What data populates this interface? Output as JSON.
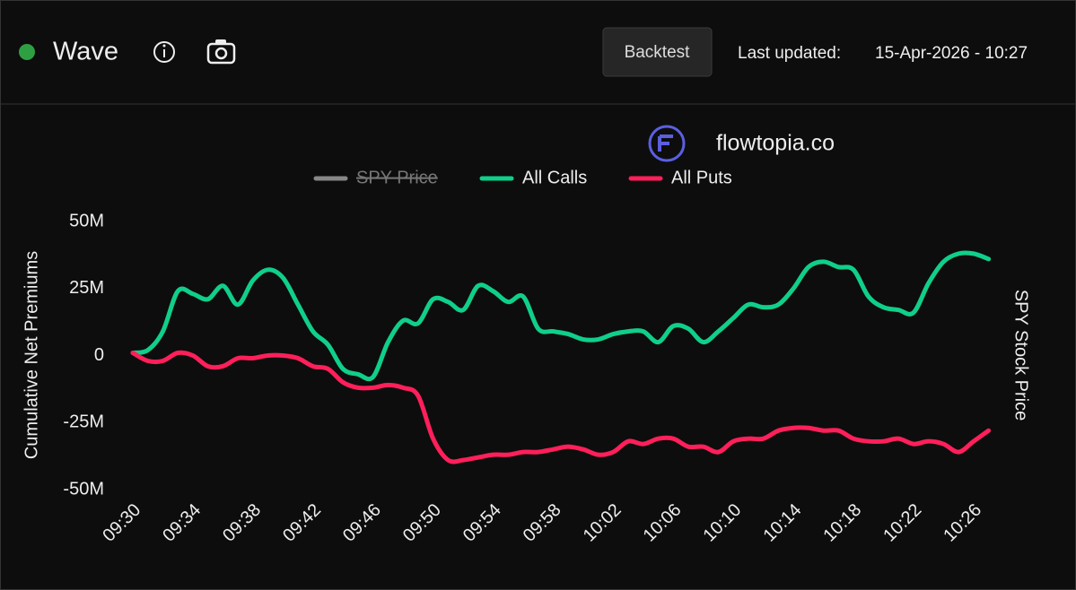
{
  "header": {
    "title": "Wave",
    "button": "Backtest",
    "updated_label": "Last updated:",
    "updated_value": "15-Apr-2026 - 10:27"
  },
  "brand": "flowtopia.co",
  "chart_data": {
    "type": "line",
    "ylabel": "Cumulative Net Premiums",
    "y2label": "SPY Stock Price",
    "categories": [
      "09:30",
      null,
      null,
      null,
      "09:34",
      null,
      null,
      null,
      "09:38",
      null,
      null,
      null,
      "09:42",
      null,
      null,
      null,
      "09:46",
      null,
      null,
      null,
      "09:50",
      null,
      null,
      null,
      "09:54",
      null,
      null,
      null,
      "09:58",
      null,
      null,
      null,
      "10:02",
      null,
      null,
      null,
      "10:06",
      null,
      null,
      null,
      "10:10",
      null,
      null,
      null,
      "10:14",
      null,
      null,
      null,
      "10:18",
      null,
      null,
      null,
      "10:22",
      null,
      null,
      null,
      "10:26",
      null
    ],
    "ylim": [
      -50000000,
      50000000
    ],
    "yticks": [
      {
        "value": -50000000,
        "label": "-50M"
      },
      {
        "value": -25000000,
        "label": "-25M"
      },
      0,
      {
        "value": 25000000,
        "label": "25M"
      },
      {
        "value": 50000000,
        "label": "50M"
      }
    ],
    "grid": false,
    "legend": "top",
    "series": [
      {
        "name": "SPY Price",
        "color": "#888888",
        "hidden": true,
        "axis": "y2"
      },
      {
        "name": "All Calls",
        "color": "#10cf8a",
        "values": [
          1000000,
          2000000,
          9000000,
          24000000,
          23000000,
          21000000,
          26000000,
          19000000,
          28000000,
          32000000,
          29000000,
          19000000,
          9000000,
          4000000,
          -5000000,
          -7000000,
          -8000000,
          5000000,
          13000000,
          12000000,
          21000000,
          20000000,
          17000000,
          26000000,
          24000000,
          20000000,
          22000000,
          10000000,
          9000000,
          8000000,
          6000000,
          6000000,
          8000000,
          9000000,
          9000000,
          5000000,
          11000000,
          10000000,
          5000000,
          9000000,
          14000000,
          19000000,
          18000000,
          19000000,
          25000000,
          33000000,
          35000000,
          33000000,
          32000000,
          22000000,
          18000000,
          17000000,
          16000000,
          27000000,
          35000000,
          38000000,
          38000000,
          36000000
        ]
      },
      {
        "name": "All Puts",
        "color": "#ff1f5a",
        "values": [
          1000000,
          -2000000,
          -2000000,
          1000000,
          0,
          -4000000,
          -4000000,
          -1000000,
          -1000000,
          0,
          0,
          -1000000,
          -4000000,
          -5000000,
          -10000000,
          -12000000,
          -12000000,
          -11000000,
          -12000000,
          -15000000,
          -31000000,
          -39000000,
          -39000000,
          -38000000,
          -37000000,
          -37000000,
          -36000000,
          -36000000,
          -35000000,
          -34000000,
          -35000000,
          -37000000,
          -36000000,
          -32000000,
          -33000000,
          -31000000,
          -31000000,
          -34000000,
          -34000000,
          -36000000,
          -32000000,
          -31000000,
          -31000000,
          -28000000,
          -27000000,
          -27000000,
          -28000000,
          -28000000,
          -31000000,
          -32000000,
          -32000000,
          -31000000,
          -33000000,
          -32000000,
          -33000000,
          -36000000,
          -32000000,
          -28000000
        ]
      }
    ]
  }
}
